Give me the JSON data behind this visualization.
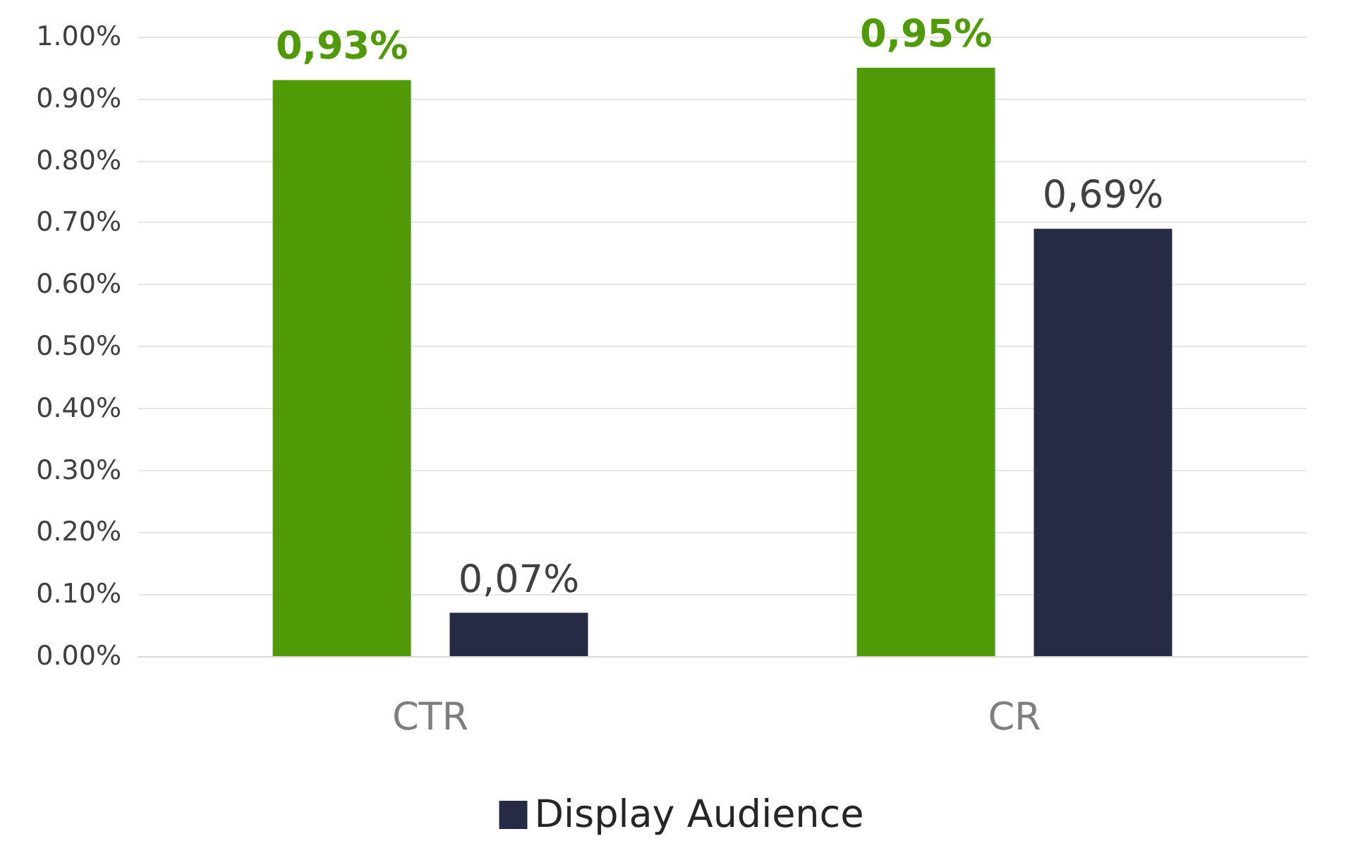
{
  "chart_data": {
    "type": "bar",
    "categories": [
      "CTR",
      "CR"
    ],
    "series": [
      {
        "color": "#4f9a06",
        "values": [
          0.93,
          0.95
        ],
        "value_labels": [
          "0,93%",
          "0,95%"
        ]
      },
      {
        "name": "Display Audience",
        "color": "#262b45",
        "values": [
          0.07,
          0.69
        ],
        "value_labels": [
          "0,07%",
          "0,69%"
        ]
      }
    ],
    "ylim": [
      0,
      1
    ],
    "yticks": [
      {
        "value": 0,
        "label": "0.00%"
      },
      {
        "value": 0.1,
        "label": "0.10%"
      },
      {
        "value": 0.2,
        "label": "0.20%"
      },
      {
        "value": 0.3,
        "label": "0.30%"
      },
      {
        "value": 0.4,
        "label": "0.40%"
      },
      {
        "value": 0.5,
        "label": "0.50%"
      },
      {
        "value": 0.6,
        "label": "0.60%"
      },
      {
        "value": 0.7,
        "label": "0.70%"
      },
      {
        "value": 0.8,
        "label": "0.80%"
      },
      {
        "value": 0.9,
        "label": "0.90%"
      },
      {
        "value": 1,
        "label": "1.00%"
      }
    ],
    "grid": "y",
    "legend": "bottom"
  }
}
